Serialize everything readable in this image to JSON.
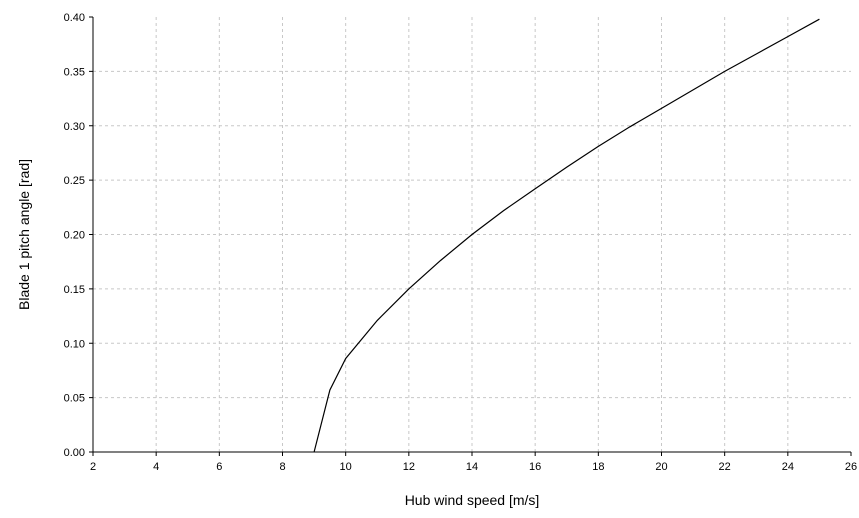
{
  "chart_data": {
    "type": "line",
    "title": "",
    "xlabel": "Hub wind speed [m/s]",
    "ylabel": "Blade 1 pitch angle  [rad]",
    "xlim": [
      2,
      26
    ],
    "ylim": [
      0,
      0.4
    ],
    "x_ticks": [
      "2",
      "4",
      "6",
      "8",
      "10",
      "12",
      "14",
      "16",
      "18",
      "20",
      "22",
      "24",
      "26"
    ],
    "y_ticks": [
      "0.00",
      "0.05",
      "0.10",
      "0.15",
      "0.20",
      "0.25",
      "0.30",
      "0.35",
      "0.40"
    ],
    "grid": true,
    "grid_style": "dashed",
    "legend": false,
    "series": [
      {
        "color": "#000000",
        "x": [
          9.0,
          9.5,
          10.0,
          11.0,
          12.0,
          13.0,
          14.0,
          15.0,
          16.0,
          17.0,
          18.0,
          19.0,
          20.0,
          21.0,
          22.0,
          23.0,
          24.0,
          25.0
        ],
        "y": [
          0.0,
          0.057,
          0.086,
          0.121,
          0.15,
          0.176,
          0.2,
          0.222,
          0.242,
          0.262,
          0.281,
          0.299,
          0.316,
          0.333,
          0.35,
          0.366,
          0.382,
          0.398
        ]
      }
    ]
  }
}
